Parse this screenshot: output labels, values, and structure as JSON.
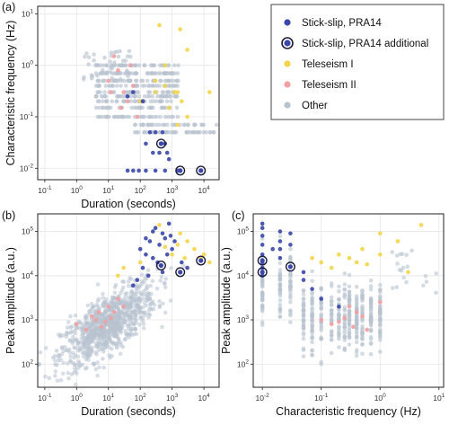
{
  "colors": {
    "stick_slip": "#3a46a8",
    "teleseism_1": "#f3d54a",
    "teleseism_2": "#f2a0a3",
    "other": "#b8c3cf",
    "ring": "#1b1b3a"
  },
  "legend": {
    "items": [
      {
        "label": "Stick-slip, PRA14",
        "key": "stick_slip",
        "marker": "dot"
      },
      {
        "label": "Stick-slip, PRA14 additional",
        "key": "stick_slip",
        "marker": "ring"
      },
      {
        "label": "Teleseism I",
        "key": "teleseism_1",
        "marker": "dot"
      },
      {
        "label": "Teleseism II",
        "key": "teleseism_2",
        "marker": "dot"
      },
      {
        "label": "Other",
        "key": "other",
        "marker": "dot"
      }
    ]
  },
  "chart_data": [
    {
      "panel": "(a)",
      "type": "scatter",
      "xlabel": "Duration (seconds)",
      "ylabel": "Characteristic frequency (Hz)",
      "xscale": "log",
      "yscale": "log",
      "xlim": [
        0.06,
        30000
      ],
      "ylim": [
        0.006,
        14
      ],
      "xticks": [
        0.1,
        1,
        10,
        100,
        1000,
        10000
      ],
      "yticks": [
        0.01,
        0.1,
        1,
        10
      ],
      "xtick_labels": [
        "10^-1",
        "10^0",
        "10^1",
        "10^2",
        "10^3",
        "10^4"
      ],
      "ytick_labels": [
        "10^-2",
        "10^-1",
        "10^0",
        "10^1"
      ],
      "grid": true,
      "series": [
        {
          "key": "stick_slip",
          "points": [
            [
              40,
              0.009
            ],
            [
              60,
              0.009
            ],
            [
              90,
              0.009
            ],
            [
              150,
              0.009
            ],
            [
              300,
              0.009
            ],
            [
              600,
              0.009
            ],
            [
              1500,
              0.009
            ],
            [
              8000,
              0.009
            ],
            [
              250,
              0.02
            ],
            [
              400,
              0.02
            ],
            [
              700,
              0.02
            ],
            [
              450,
              0.03
            ],
            [
              600,
              0.03
            ],
            [
              800,
              0.015
            ],
            [
              150,
              0.03
            ],
            [
              300,
              0.05
            ],
            [
              500,
              0.05
            ],
            [
              200,
              0.05
            ],
            [
              120,
              0.2
            ],
            [
              60,
              0.3
            ],
            [
              40,
              0.25
            ]
          ]
        },
        {
          "key": "stick_slip_ring",
          "points": [
            [
              450,
              0.03
            ],
            [
              1800,
              0.009
            ],
            [
              8000,
              0.009
            ]
          ]
        },
        {
          "key": "teleseism_1",
          "points": [
            [
              400,
              6
            ],
            [
              1800,
              5
            ],
            [
              3000,
              2
            ],
            [
              600,
              0.4
            ],
            [
              1500,
              0.3
            ],
            [
              2000,
              0.2
            ],
            [
              800,
              0.15
            ],
            [
              300,
              0.3
            ],
            [
              100,
              0.2
            ],
            [
              3000,
              0.1
            ],
            [
              1500,
              0.07
            ],
            [
              600,
              1
            ],
            [
              300,
              0.5
            ],
            [
              15000,
              0.3
            ],
            [
              1200,
              0.3
            ]
          ]
        },
        {
          "key": "teleseism_2",
          "points": [
            [
              10,
              0.5
            ],
            [
              15,
              1.5
            ],
            [
              20,
              0.8
            ],
            [
              30,
              0.3
            ],
            [
              40,
              0.2
            ],
            [
              60,
              0.4
            ],
            [
              25,
              0.15
            ],
            [
              80,
              0.1
            ],
            [
              12,
              0.3
            ],
            [
              50,
              1
            ]
          ]
        }
      ]
    },
    {
      "panel": "(b)",
      "type": "scatter",
      "xlabel": "Duration (seconds)",
      "ylabel": "Peak amplitude (a.u.)",
      "xscale": "log",
      "yscale": "log",
      "xlim": [
        0.06,
        30000
      ],
      "ylim": [
        30,
        250000
      ],
      "xticks": [
        0.1,
        1,
        10,
        100,
        1000,
        10000
      ],
      "yticks": [
        100,
        1000,
        10000,
        100000
      ],
      "xtick_labels": [
        "10^-1",
        "10^0",
        "10^1",
        "10^2",
        "10^3",
        "10^4"
      ],
      "ytick_labels": [
        "10^2",
        "10^3",
        "10^4",
        "10^5"
      ],
      "grid": true,
      "series": [
        {
          "key": "stick_slip",
          "points": [
            [
              300,
              120000
            ],
            [
              500,
              90000
            ],
            [
              800,
              150000
            ],
            [
              200,
              60000
            ],
            [
              400,
              50000
            ],
            [
              600,
              70000
            ],
            [
              1000,
              40000
            ],
            [
              150,
              30000
            ],
            [
              250,
              25000
            ],
            [
              350,
              20000
            ],
            [
              700,
              30000
            ],
            [
              120,
              15000
            ],
            [
              180,
              10000
            ],
            [
              80,
              8000
            ],
            [
              60,
              6000
            ],
            [
              2000,
              20000
            ],
            [
              3000,
              15000
            ],
            [
              500,
              12000
            ],
            [
              900,
              80000
            ],
            [
              1200,
              60000
            ],
            [
              250,
              100000
            ],
            [
              150,
              70000
            ],
            [
              100,
              40000
            ]
          ]
        },
        {
          "key": "stick_slip_ring",
          "points": [
            [
              450,
              17000
            ],
            [
              1800,
              12000
            ],
            [
              8000,
              22000
            ]
          ]
        },
        {
          "key": "teleseism_1",
          "points": [
            [
              400,
              140000
            ],
            [
              1800,
              90000
            ],
            [
              3000,
              60000
            ],
            [
              5000,
              40000
            ],
            [
              8000,
              25000
            ],
            [
              10000,
              30000
            ],
            [
              1500,
              50000
            ],
            [
              100,
              20000
            ],
            [
              30,
              15000
            ],
            [
              20,
              10000
            ],
            [
              1000,
              30000
            ],
            [
              2500,
              25000
            ],
            [
              15000,
              20000
            ],
            [
              600,
              45000
            ]
          ]
        },
        {
          "key": "teleseism_2",
          "points": [
            [
              1,
              800
            ],
            [
              2,
              600
            ],
            [
              3,
              1200
            ],
            [
              5,
              1500
            ],
            [
              8,
              900
            ],
            [
              10,
              2000
            ],
            [
              15,
              1500
            ],
            [
              20,
              3000
            ],
            [
              30,
              2000
            ],
            [
              4,
              1000
            ],
            [
              6,
              700
            ],
            [
              12,
              1100
            ]
          ]
        }
      ]
    },
    {
      "panel": "(c)",
      "type": "scatter",
      "xlabel": "Characteristic frequency (Hz)",
      "ylabel": "Peak amplitude (a.u.)",
      "xscale": "log",
      "yscale": "log",
      "xlim": [
        0.007,
        12
      ],
      "ylim": [
        30,
        250000
      ],
      "xticks": [
        0.01,
        0.1,
        1,
        10
      ],
      "yticks": [
        100,
        1000,
        10000,
        100000
      ],
      "xtick_labels": [
        "10^-2",
        "10^-1",
        "10^0",
        "10^1"
      ],
      "ytick_labels": [
        "10^2",
        "10^3",
        "10^4",
        "10^5"
      ],
      "grid": true,
      "series": [
        {
          "key": "stick_slip",
          "points": [
            [
              0.01,
              120000
            ],
            [
              0.01,
              80000
            ],
            [
              0.01,
              50000
            ],
            [
              0.01,
              30000
            ],
            [
              0.01,
              20000
            ],
            [
              0.01,
              15000
            ],
            [
              0.01,
              10000
            ],
            [
              0.02,
              100000
            ],
            [
              0.02,
              60000
            ],
            [
              0.02,
              40000
            ],
            [
              0.02,
              25000
            ],
            [
              0.03,
              90000
            ],
            [
              0.03,
              50000
            ],
            [
              0.05,
              12000
            ],
            [
              0.05,
              8000
            ],
            [
              0.07,
              5000
            ],
            [
              0.1,
              3000
            ],
            [
              0.2,
              2000
            ],
            [
              0.01,
              150000
            ],
            [
              0.015,
              40000
            ]
          ]
        },
        {
          "key": "stick_slip_ring",
          "points": [
            [
              0.01,
              22000
            ],
            [
              0.01,
              12000
            ],
            [
              0.03,
              16000
            ]
          ]
        },
        {
          "key": "teleseism_1",
          "points": [
            [
              5,
              140000
            ],
            [
              1,
              90000
            ],
            [
              2,
              60000
            ],
            [
              0.5,
              40000
            ],
            [
              0.3,
              25000
            ],
            [
              0.2,
              30000
            ],
            [
              0.4,
              20000
            ],
            [
              0.15,
              15000
            ],
            [
              0.1,
              20000
            ],
            [
              0.07,
              25000
            ],
            [
              1,
              30000
            ],
            [
              3,
              12000
            ],
            [
              0.6,
              18000
            ]
          ]
        },
        {
          "key": "teleseism_2",
          "points": [
            [
              0.3,
              2000
            ],
            [
              0.4,
              1500
            ],
            [
              0.5,
              1200
            ],
            [
              0.2,
              900
            ],
            [
              0.15,
              800
            ],
            [
              0.25,
              1100
            ],
            [
              0.6,
              600
            ],
            [
              1,
              2500
            ],
            [
              0.1,
              1000
            ],
            [
              0.35,
              700
            ]
          ]
        }
      ]
    }
  ]
}
